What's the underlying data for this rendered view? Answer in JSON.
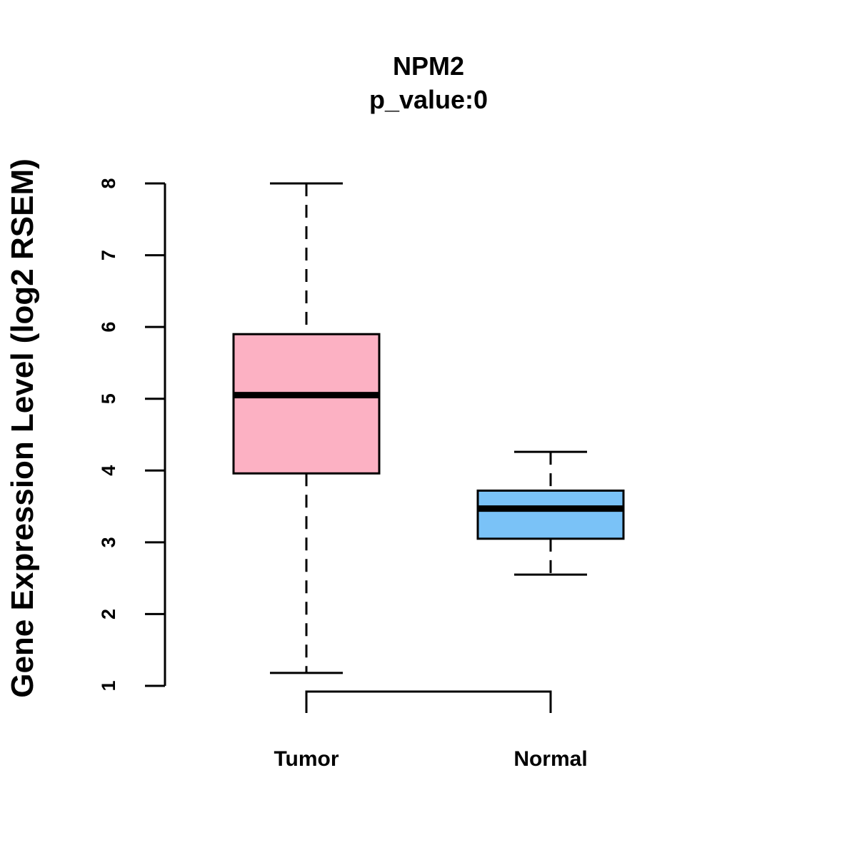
{
  "chart_data": {
    "type": "boxplot",
    "title": "NPM2",
    "subtitle": "p_value:0",
    "xlabel": "",
    "ylabel": "Gene Expression Level (log2 RSEM)",
    "ylim": [
      1,
      8
    ],
    "yticks": [
      1,
      2,
      3,
      4,
      5,
      6,
      7,
      8
    ],
    "grid": false,
    "categories": [
      "Tumor",
      "Normal"
    ],
    "series": [
      {
        "name": "Tumor",
        "whisker_low": 1.18,
        "q1": 3.96,
        "median": 5.05,
        "q3": 5.9,
        "whisker_high": 8.0,
        "color": "#FCB1C3"
      },
      {
        "name": "Normal",
        "whisker_low": 2.55,
        "q1": 3.05,
        "median": 3.47,
        "q3": 3.72,
        "whisker_high": 4.26,
        "color": "#7AC2F7"
      }
    ],
    "comparison_bracket": {
      "between": [
        "Tumor",
        "Normal"
      ]
    }
  }
}
